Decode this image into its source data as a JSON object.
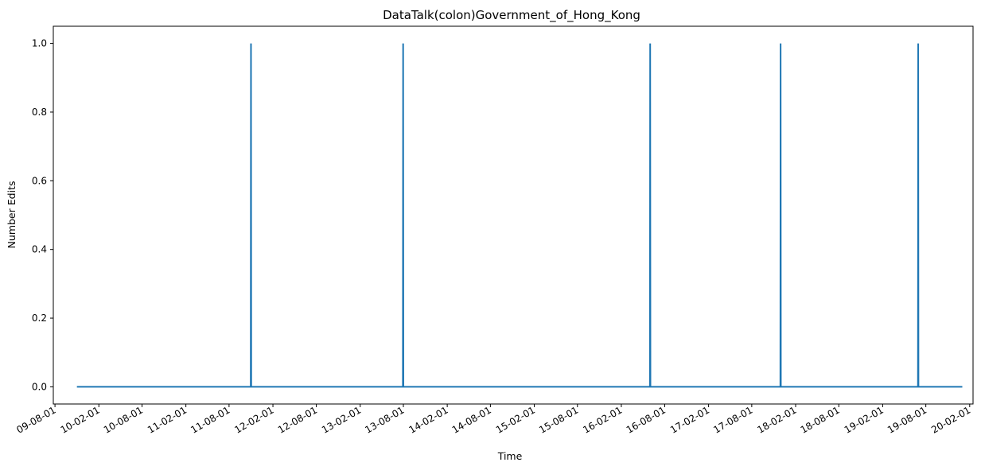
{
  "chart_data": {
    "type": "line",
    "title": "DataTalk(colon)Government_of_Hong_Kong",
    "xlabel": "Time",
    "ylabel": "Number Edits",
    "x_ticks": [
      "09-08-01",
      "10-02-01",
      "10-08-01",
      "11-02-01",
      "11-08-01",
      "12-02-01",
      "12-08-01",
      "13-02-01",
      "13-08-01",
      "14-02-01",
      "14-08-01",
      "15-02-01",
      "15-08-01",
      "16-02-01",
      "16-08-01",
      "17-02-01",
      "17-08-01",
      "18-02-01",
      "18-08-01",
      "19-02-01",
      "19-08-01",
      "20-02-01"
    ],
    "y_ticks": [
      "0.0",
      "0.2",
      "0.4",
      "0.6",
      "0.8",
      "1.0"
    ],
    "ylim": [
      -0.05,
      1.05
    ],
    "xlim": [
      "2009-07-25",
      "2020-02-15"
    ],
    "grid": false,
    "line_color": "#1f77b4",
    "series": [
      {
        "x": [
          "2009-11-01",
          "2011-10-31",
          "2011-11-01",
          "2011-11-02",
          "2013-07-30",
          "2013-07-31",
          "2013-08-01",
          "2016-05-31",
          "2016-06-01",
          "2016-06-02",
          "2017-11-29",
          "2017-11-30",
          "2017-12-01",
          "2019-06-29",
          "2019-06-30",
          "2019-07-01",
          "2020-01-01"
        ],
        "values": [
          0,
          0,
          1,
          0,
          0,
          1,
          0,
          0,
          1,
          0,
          0,
          1,
          0,
          0,
          1,
          0,
          0
        ]
      }
    ]
  }
}
